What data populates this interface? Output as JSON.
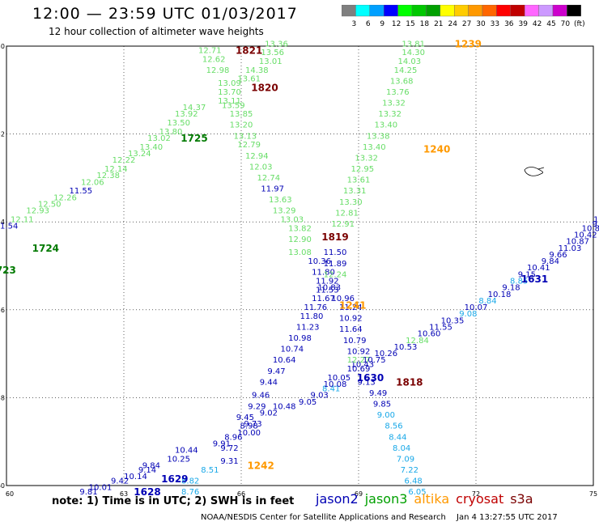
{
  "title": "12:00 — 23:59 UTC 01/03/2017",
  "subtitle": "12 hour collection of altimeter wave heights",
  "colorbar": {
    "labels": [
      "3",
      "6",
      "9",
      "12",
      "15",
      "18",
      "21",
      "24",
      "27",
      "30",
      "33",
      "36",
      "39",
      "42",
      "45",
      "70",
      "(ft)"
    ],
    "colors": [
      "#7f7f7f",
      "#00ffff",
      "#00a0ff",
      "#0000ff",
      "#00ff00",
      "#00c800",
      "#00a000",
      "#ffff00",
      "#ffcc00",
      "#ff9900",
      "#ff6600",
      "#ff0000",
      "#c00000",
      "#ff66ff",
      "#cc99ff",
      "#cc00cc",
      "#000000"
    ]
  },
  "axes": {
    "lat_labels": [
      "-50",
      "-52",
      "-54",
      "-56",
      "-58",
      "-60"
    ],
    "lon_labels": [
      "60",
      "63",
      "66",
      "69",
      "72",
      "75"
    ]
  },
  "colors": {
    "jason2": "#0000b4",
    "jason2_light": "#18a8e8",
    "jason3": "#66dd66",
    "jason3_dark": "#007a00",
    "altika": "#ff9900",
    "cryosat": "#c00000",
    "s3a": "#7a0000"
  },
  "tracks": [
    {
      "sat": "jason3",
      "lons": [
        54.1,
        54.3,
        54.5,
        54.8,
        55.0,
        55.3,
        55.5,
        55.8,
        56.0,
        56.3,
        56.5,
        56.8,
        57.0,
        57.3,
        57.5,
        57.8,
        58.0,
        58.3,
        58.5,
        58.8,
        59.0,
        59.3,
        59.5,
        59.8,
        60.1,
        60.4,
        60.7,
        60.9,
        61.2,
        61.5,
        61.8,
        62.0
      ],
      "values": [
        "12.25",
        "12.37",
        "12.24",
        "12.31",
        "12.64",
        "12.96",
        "12.57",
        "12.64",
        "12.73",
        "12.66",
        "12.79",
        "13.04",
        "13.19",
        "13.05",
        "13.60",
        "12.78",
        "12.85",
        "13.03",
        "13.12",
        "13.21",
        "12.72",
        "12.66",
        "12.79",
        "12.47",
        "12.31",
        "12.73",
        "12.74",
        "12.63",
        "12.96",
        "12.95",
        "12.94",
        "12.73"
      ]
    },
    {
      "sat": "jason3",
      "lons": [],
      "values": []
    }
  ],
  "labels": [
    {
      "text": "13.36",
      "lon": 66.9,
      "lat": -49.95,
      "c": "jason3"
    },
    {
      "text": "13.56",
      "lon": 66.8,
      "lat": -50.15,
      "c": "jason3"
    },
    {
      "text": "13.01",
      "lon": 66.75,
      "lat": -50.35,
      "c": "jason3"
    },
    {
      "text": "12.71",
      "lon": 65.2,
      "lat": -50.1,
      "c": "jason3"
    },
    {
      "text": "12.62",
      "lon": 65.3,
      "lat": -50.3,
      "c": "jason3"
    },
    {
      "text": "12.98",
      "lon": 65.4,
      "lat": -50.55,
      "c": "jason3"
    },
    {
      "text": "14.38",
      "lon": 66.4,
      "lat": -50.55,
      "c": "jason3"
    },
    {
      "text": "13.61",
      "lon": 66.2,
      "lat": -50.75,
      "c": "jason3"
    },
    {
      "text": "13.09",
      "lon": 65.7,
      "lat": -50.85,
      "c": "jason3"
    },
    {
      "text": "13.70",
      "lon": 65.7,
      "lat": -51.05,
      "c": "jason3"
    },
    {
      "text": "13.11",
      "lon": 65.7,
      "lat": -51.25,
      "c": "jason3"
    },
    {
      "text": "13.59",
      "lon": 65.8,
      "lat": -51.35,
      "c": "jason3"
    },
    {
      "text": "14.37",
      "lon": 64.8,
      "lat": -51.4,
      "c": "jason3"
    },
    {
      "text": "13.85",
      "lon": 66.0,
      "lat": -51.55,
      "c": "jason3"
    },
    {
      "text": "13.92",
      "lon": 64.6,
      "lat": -51.55,
      "c": "jason3"
    },
    {
      "text": "13.50",
      "lon": 64.4,
      "lat": -51.75,
      "c": "jason3"
    },
    {
      "text": "13.20",
      "lon": 66.0,
      "lat": -51.8,
      "c": "jason3"
    },
    {
      "text": "13.80",
      "lon": 64.2,
      "lat": -51.95,
      "c": "jason3"
    },
    {
      "text": "13.02",
      "lon": 63.9,
      "lat": -52.1,
      "c": "jason3"
    },
    {
      "text": "13.13",
      "lon": 66.1,
      "lat": -52.05,
      "c": "jason3"
    },
    {
      "text": "12.79",
      "lon": 66.2,
      "lat": -52.25,
      "c": "jason3"
    },
    {
      "text": "13.40",
      "lon": 63.7,
      "lat": -52.3,
      "c": "jason3"
    },
    {
      "text": "13.24",
      "lon": 63.4,
      "lat": -52.45,
      "c": "jason3"
    },
    {
      "text": "12.94",
      "lon": 66.4,
      "lat": -52.5,
      "c": "jason3"
    },
    {
      "text": "12.22",
      "lon": 63.0,
      "lat": -52.6,
      "c": "jason3"
    },
    {
      "text": "12.03",
      "lon": 66.5,
      "lat": -52.75,
      "c": "jason3"
    },
    {
      "text": "12.14",
      "lon": 62.8,
      "lat": -52.8,
      "c": "jason3"
    },
    {
      "text": "12.38",
      "lon": 62.6,
      "lat": -52.95,
      "c": "jason3"
    },
    {
      "text": "12.74",
      "lon": 66.7,
      "lat": -53.0,
      "c": "jason3"
    },
    {
      "text": "12.06",
      "lon": 62.2,
      "lat": -53.1,
      "c": "jason3"
    },
    {
      "text": "11.97",
      "lon": 66.8,
      "lat": -53.25,
      "c": "jason2"
    },
    {
      "text": "11.55",
      "lon": 61.9,
      "lat": -53.3,
      "c": "jason2"
    },
    {
      "text": "12.26",
      "lon": 61.5,
      "lat": -53.45,
      "c": "jason3"
    },
    {
      "text": "13.63",
      "lon": 67.0,
      "lat": -53.5,
      "c": "jason3"
    },
    {
      "text": "12.50",
      "lon": 61.1,
      "lat": -53.6,
      "c": "jason3"
    },
    {
      "text": "13.29",
      "lon": 67.1,
      "lat": -53.75,
      "c": "jason3"
    },
    {
      "text": "12.93",
      "lon": 60.8,
      "lat": -53.75,
      "c": "jason3"
    },
    {
      "text": "12.11",
      "lon": 60.4,
      "lat": -53.95,
      "c": "jason3"
    },
    {
      "text": "13.03",
      "lon": 67.3,
      "lat": -53.95,
      "c": "jason3"
    },
    {
      "text": "11.54",
      "lon": 60.0,
      "lat": -54.1,
      "c": "jason2"
    },
    {
      "text": "13.82",
      "lon": 67.5,
      "lat": -54.15,
      "c": "jason3"
    },
    {
      "text": "11.71",
      "lon": 59.7,
      "lat": -54.25,
      "c": "jason2"
    },
    {
      "text": "12.90",
      "lon": 67.5,
      "lat": -54.4,
      "c": "jason3"
    },
    {
      "text": "12.13",
      "lon": 59.3,
      "lat": -54.5,
      "c": "jason3"
    },
    {
      "text": "12.44",
      "lon": 59.0,
      "lat": -54.45,
      "c": "jason3"
    },
    {
      "text": "13.08",
      "lon": 67.5,
      "lat": -54.7,
      "c": "jason3"
    },
    {
      "text": "12.66",
      "lon": 58.4,
      "lat": -54.8,
      "c": "jason3"
    },
    {
      "text": "12.39",
      "lon": 58.1,
      "lat": -54.95,
      "c": "jason3"
    },
    {
      "text": "10.36",
      "lon": 68.0,
      "lat": -54.9,
      "c": "jason2"
    },
    {
      "text": "12.79",
      "lon": 57.9,
      "lat": -55.1,
      "c": "jason3"
    },
    {
      "text": "11.80",
      "lon": 68.1,
      "lat": -55.15,
      "c": "jason2"
    },
    {
      "text": "11.92",
      "lon": 68.2,
      "lat": -55.35,
      "c": "jason2"
    },
    {
      "text": "11.53",
      "lon": 68.2,
      "lat": -55.55,
      "c": "jason2"
    },
    {
      "text": "10.83",
      "lon": 68.25,
      "lat": -55.5,
      "c": "jason2"
    },
    {
      "text": "11.67",
      "lon": 68.1,
      "lat": -55.75,
      "c": "jason2"
    },
    {
      "text": "10.96",
      "lon": 68.6,
      "lat": -55.75,
      "c": "jason2"
    },
    {
      "text": "11.76",
      "lon": 67.9,
      "lat": -55.95,
      "c": "jason2"
    },
    {
      "text": "11.24",
      "lon": 68.8,
      "lat": -55.95,
      "c": "jason2"
    },
    {
      "text": "11.80",
      "lon": 67.8,
      "lat": -56.15,
      "c": "jason2"
    },
    {
      "text": "10.92",
      "lon": 68.8,
      "lat": -56.2,
      "c": "jason2"
    },
    {
      "text": "11.23",
      "lon": 67.7,
      "lat": -56.4,
      "c": "jason2"
    },
    {
      "text": "11.64",
      "lon": 68.8,
      "lat": -56.45,
      "c": "jason2"
    },
    {
      "text": "10.98",
      "lon": 67.5,
      "lat": -56.65,
      "c": "jason2"
    },
    {
      "text": "10.79",
      "lon": 68.9,
      "lat": -56.7,
      "c": "jason2"
    },
    {
      "text": "10.74",
      "lon": 67.3,
      "lat": -56.9,
      "c": "jason2"
    },
    {
      "text": "10.92",
      "lon": 69.0,
      "lat": -56.95,
      "c": "jason2"
    },
    {
      "text": "10.64",
      "lon": 67.1,
      "lat": -57.15,
      "c": "jason2"
    },
    {
      "text": "9.47",
      "lon": 66.9,
      "lat": -57.4,
      "c": "jason2"
    },
    {
      "text": "9.44",
      "lon": 66.7,
      "lat": -57.65,
      "c": "jason2"
    },
    {
      "text": "9.46",
      "lon": 66.5,
      "lat": -57.95,
      "c": "jason2"
    },
    {
      "text": "9.29",
      "lon": 66.4,
      "lat": -58.2,
      "c": "jason2"
    },
    {
      "text": "9.45",
      "lon": 66.1,
      "lat": -58.45,
      "c": "jason2"
    },
    {
      "text": "8.98",
      "lon": 66.2,
      "lat": -58.65,
      "c": "jason2"
    },
    {
      "text": "10.00",
      "lon": 66.2,
      "lat": -58.8,
      "c": "jason2"
    },
    {
      "text": "8.96",
      "lon": 65.8,
      "lat": -58.9,
      "c": "jason2"
    },
    {
      "text": "9.91",
      "lon": 65.5,
      "lat": -59.05,
      "c": "jason2"
    },
    {
      "text": "9.72",
      "lon": 65.7,
      "lat": -59.15,
      "c": "jason2"
    },
    {
      "text": "10.44",
      "lon": 64.6,
      "lat": -59.2,
      "c": "jason2"
    },
    {
      "text": "10.25",
      "lon": 64.4,
      "lat": -59.4,
      "c": "jason2"
    },
    {
      "text": "9.31",
      "lon": 65.7,
      "lat": -59.45,
      "c": "jason2"
    },
    {
      "text": "9.84",
      "lon": 63.7,
      "lat": -59.55,
      "c": "jason2"
    },
    {
      "text": "8.51",
      "lon": 65.2,
      "lat": -59.65,
      "c": "jason2_light"
    },
    {
      "text": "9.14",
      "lon": 63.6,
      "lat": -59.65,
      "c": "jason2"
    },
    {
      "text": "10.14",
      "lon": 63.3,
      "lat": -59.8,
      "c": "jason2"
    },
    {
      "text": "8.82",
      "lon": 64.7,
      "lat": -59.9,
      "c": "jason2_light"
    },
    {
      "text": "9.42",
      "lon": 62.9,
      "lat": -59.9,
      "c": "jason2"
    },
    {
      "text": "10.01",
      "lon": 62.4,
      "lat": -60.05,
      "c": "jason2"
    },
    {
      "text": "9.81",
      "lon": 62.1,
      "lat": -60.15,
      "c": "jason2"
    },
    {
      "text": "8.76",
      "lon": 64.7,
      "lat": -60.15,
      "c": "jason2_light"
    },
    {
      "text": "9.73",
      "lon": 66.3,
      "lat": -58.6,
      "c": "jason2"
    },
    {
      "text": "9.02",
      "lon": 66.7,
      "lat": -58.35,
      "c": "jason2"
    },
    {
      "text": "10.48",
      "lon": 67.1,
      "lat": -58.2,
      "c": "jason2"
    },
    {
      "text": "9.05",
      "lon": 67.7,
      "lat": -58.1,
      "c": "jason2"
    },
    {
      "text": "9.03",
      "lon": 68.0,
      "lat": -57.95,
      "c": "jason2"
    },
    {
      "text": "8.41",
      "lon": 68.3,
      "lat": -57.8,
      "c": "jason2_light"
    },
    {
      "text": "10.08",
      "lon": 68.4,
      "lat": -57.7,
      "c": "jason2"
    },
    {
      "text": "10.05",
      "lon": 68.5,
      "lat": -57.55,
      "c": "jason2"
    },
    {
      "text": "10.69",
      "lon": 69.0,
      "lat": -57.35,
      "c": "jason2"
    },
    {
      "text": "10.43",
      "lon": 69.1,
      "lat": -57.25,
      "c": "jason2"
    },
    {
      "text": "12.27",
      "lon": 69.0,
      "lat": -57.15,
      "c": "jason3"
    },
    {
      "text": "10.75",
      "lon": 69.4,
      "lat": -57.15,
      "c": "jason2"
    },
    {
      "text": "10.26",
      "lon": 69.7,
      "lat": -57.0,
      "c": "jason2"
    },
    {
      "text": "10.53",
      "lon": 70.2,
      "lat": -56.85,
      "c": "jason2"
    },
    {
      "text": "12.84",
      "lon": 70.5,
      "lat": -56.7,
      "c": "jason3"
    },
    {
      "text": "10.60",
      "lon": 70.8,
      "lat": -56.55,
      "c": "jason2"
    },
    {
      "text": "11.55",
      "lon": 71.1,
      "lat": -56.4,
      "c": "jason2"
    },
    {
      "text": "10.35",
      "lon": 71.4,
      "lat": -56.25,
      "c": "jason2"
    },
    {
      "text": "9.08",
      "lon": 71.8,
      "lat": -56.1,
      "c": "jason2_light"
    },
    {
      "text": "10.07",
      "lon": 72.0,
      "lat": -55.95,
      "c": "jason2"
    },
    {
      "text": "8.84",
      "lon": 72.3,
      "lat": -55.8,
      "c": "jason2_light"
    },
    {
      "text": "10.18",
      "lon": 72.6,
      "lat": -55.65,
      "c": "jason2"
    },
    {
      "text": "9.18",
      "lon": 72.9,
      "lat": -55.5,
      "c": "jason2"
    },
    {
      "text": "8.85",
      "lon": 73.1,
      "lat": -55.35,
      "c": "jason2_light"
    },
    {
      "text": "9.15",
      "lon": 73.3,
      "lat": -55.2,
      "c": "jason2"
    },
    {
      "text": "10.41",
      "lon": 73.6,
      "lat": -55.05,
      "c": "jason2"
    },
    {
      "text": "9.84",
      "lon": 73.9,
      "lat": -54.9,
      "c": "jason2"
    },
    {
      "text": "9.66",
      "lon": 74.1,
      "lat": -54.75,
      "c": "jason2"
    },
    {
      "text": "11.03",
      "lon": 74.4,
      "lat": -54.6,
      "c": "jason2"
    },
    {
      "text": "10.87",
      "lon": 74.6,
      "lat": -54.45,
      "c": "jason2"
    },
    {
      "text": "10.42",
      "lon": 74.8,
      "lat": -54.3,
      "c": "jason2"
    },
    {
      "text": "10.86",
      "lon": 75.0,
      "lat": -54.15,
      "c": "jason2"
    },
    {
      "text": "9.56",
      "lon": 75.2,
      "lat": -54.05,
      "c": "jason2"
    },
    {
      "text": "10.28",
      "lon": 75.3,
      "lat": -53.95,
      "c": "jason2"
    },
    {
      "text": "9.9",
      "lon": 75.5,
      "lat": -53.8,
      "c": "jason2"
    },
    {
      "text": "9.13",
      "lon": 69.2,
      "lat": -57.65,
      "c": "jason2"
    },
    {
      "text": "9.49",
      "lon": 69.5,
      "lat": -57.9,
      "c": "jason2"
    },
    {
      "text": "9.85",
      "lon": 69.6,
      "lat": -58.15,
      "c": "jason2"
    },
    {
      "text": "9.00",
      "lon": 69.7,
      "lat": -58.4,
      "c": "jason2_light"
    },
    {
      "text": "8.56",
      "lon": 69.9,
      "lat": -58.65,
      "c": "jason2_light"
    },
    {
      "text": "8.44",
      "lon": 70.0,
      "lat": -58.9,
      "c": "jason2_light"
    },
    {
      "text": "8.04",
      "lon": 70.1,
      "lat": -59.15,
      "c": "jason2_light"
    },
    {
      "text": "7.09",
      "lon": 70.2,
      "lat": -59.4,
      "c": "jason2_light"
    },
    {
      "text": "7.22",
      "lon": 70.3,
      "lat": -59.65,
      "c": "jason2_light"
    },
    {
      "text": "6.48",
      "lon": 70.4,
      "lat": -59.9,
      "c": "jason2_light"
    },
    {
      "text": "6.05",
      "lon": 70.5,
      "lat": -60.15,
      "c": "jason2_light"
    },
    {
      "text": "13.81",
      "lon": 70.4,
      "lat": -49.95,
      "c": "jason3"
    },
    {
      "text": "14.30",
      "lon": 70.4,
      "lat": -50.15,
      "c": "jason3"
    },
    {
      "text": "14.03",
      "lon": 70.3,
      "lat": -50.35,
      "c": "jason3"
    },
    {
      "text": "14.25",
      "lon": 70.2,
      "lat": -50.55,
      "c": "jason3"
    },
    {
      "text": "13.68",
      "lon": 70.1,
      "lat": -50.8,
      "c": "jason3"
    },
    {
      "text": "13.76",
      "lon": 70.0,
      "lat": -51.05,
      "c": "jason3"
    },
    {
      "text": "13.32",
      "lon": 69.9,
      "lat": -51.3,
      "c": "jason3"
    },
    {
      "text": "13.32",
      "lon": 69.8,
      "lat": -51.55,
      "c": "jason3"
    },
    {
      "text": "13.40",
      "lon": 69.7,
      "lat": -51.8,
      "c": "jason3"
    },
    {
      "text": "13.38",
      "lon": 69.5,
      "lat": -52.05,
      "c": "jason3"
    },
    {
      "text": "13.40",
      "lon": 69.4,
      "lat": -52.3,
      "c": "jason3"
    },
    {
      "text": "13.32",
      "lon": 69.2,
      "lat": -52.55,
      "c": "jason3"
    },
    {
      "text": "12.95",
      "lon": 69.1,
      "lat": -52.8,
      "c": "jason3"
    },
    {
      "text": "13.61",
      "lon": 69.0,
      "lat": -53.05,
      "c": "jason3"
    },
    {
      "text": "13.31",
      "lon": 68.9,
      "lat": -53.3,
      "c": "jason3"
    },
    {
      "text": "13.30",
      "lon": 68.8,
      "lat": -53.55,
      "c": "jason3"
    },
    {
      "text": "12.81",
      "lon": 68.7,
      "lat": -53.8,
      "c": "jason3"
    },
    {
      "text": "12.91",
      "lon": 68.6,
      "lat": -54.05,
      "c": "jason3"
    },
    {
      "text": "11.50",
      "lon": 68.4,
      "lat": -54.7,
      "c": "jason2"
    },
    {
      "text": "11.89",
      "lon": 68.4,
      "lat": -54.95,
      "c": "jason2"
    },
    {
      "text": "12.24",
      "lon": 68.4,
      "lat": -55.2,
      "c": "jason3"
    }
  ],
  "time_labels": [
    {
      "text": "1821",
      "lon": 66.2,
      "lat": -50.1,
      "c": "s3a"
    },
    {
      "text": "1820",
      "lon": 66.6,
      "lat": -50.95,
      "c": "s3a"
    },
    {
      "text": "1725",
      "lon": 64.8,
      "lat": -52.1,
      "c": "jason3_dark"
    },
    {
      "text": "1724",
      "lon": 61.0,
      "lat": -54.6,
      "c": "jason3_dark"
    },
    {
      "text": "1723",
      "lon": 59.9,
      "lat": -55.1,
      "c": "jason3_dark"
    },
    {
      "text": "1819",
      "lon": 68.4,
      "lat": -54.35,
      "c": "s3a"
    },
    {
      "text": "1241",
      "lon": 68.85,
      "lat": -55.9,
      "c": "altika"
    },
    {
      "text": "1239",
      "lon": 71.8,
      "lat": -49.95,
      "c": "altika"
    },
    {
      "text": "1240",
      "lon": 71.0,
      "lat": -52.35,
      "c": "altika"
    },
    {
      "text": "1631",
      "lon": 73.5,
      "lat": -55.3,
      "c": "jason2"
    },
    {
      "text": "1630",
      "lon": 69.3,
      "lat": -57.55,
      "c": "jason2"
    },
    {
      "text": "1818",
      "lon": 70.3,
      "lat": -57.65,
      "c": "s3a"
    },
    {
      "text": "1242",
      "lon": 66.5,
      "lat": -59.55,
      "c": "altika"
    },
    {
      "text": "1629",
      "lon": 64.3,
      "lat": -59.85,
      "c": "jason2"
    },
    {
      "text": "1628",
      "lon": 63.6,
      "lat": -60.15,
      "c": "jason2"
    }
  ],
  "note": "note: 1) Time is in UTC; 2) SWH is in feet",
  "legend": [
    {
      "name": "jason2",
      "color": "#0000b4"
    },
    {
      "name": "jason3",
      "color": "#00a000"
    },
    {
      "name": "altika",
      "color": "#ff9900"
    },
    {
      "name": "cryosat",
      "color": "#c00000"
    },
    {
      "name": "s3a",
      "color": "#7a0000"
    }
  ],
  "credit": "NOAA/NESDIS Center for Satellite Applications and Research",
  "timestamp": "Jan  4 13:27:55 UTC 2017"
}
